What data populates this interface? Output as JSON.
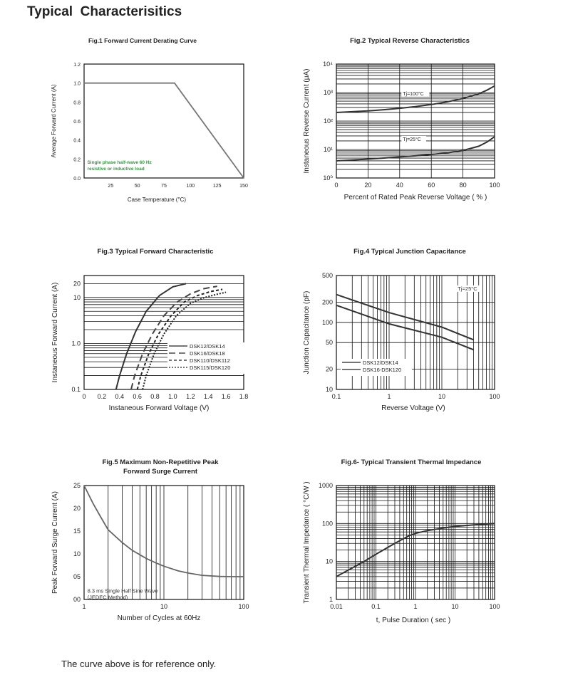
{
  "page": {
    "title": "Typical  Characterisitics",
    "footer": "The curve above is for reference only."
  },
  "chart_data": [
    {
      "id": "fig1",
      "type": "line",
      "title": "Fig.1  Forward Current Derating Curve",
      "xlabel": "Case Temperature (°C)",
      "ylabel": "Average Forward Current (A)",
      "x_scale": "linear",
      "y_scale": "linear",
      "xlim": [
        0,
        150
      ],
      "ylim": [
        0,
        1.2
      ],
      "x_ticks": [
        25,
        50,
        75,
        100,
        125,
        150
      ],
      "x_tick_labels": [
        "25",
        "50",
        "75",
        "100",
        "125",
        "150"
      ],
      "y_ticks": [
        0,
        0.2,
        0.4,
        0.6,
        0.8,
        1.0,
        1.2
      ],
      "y_tick_labels": [
        "0.0",
        "0.2",
        "0.4",
        "0.6",
        "0.8",
        "1.0",
        "1.2"
      ],
      "grid": {
        "x": [],
        "y": []
      },
      "annotation": {
        "lines": [
          "Single phase half-wave 60 Hz",
          "resistive or inductive load"
        ],
        "color": "#2e9a3a",
        "x": 3,
        "y": 0.15
      },
      "series": [
        {
          "x": [
            0,
            85,
            150
          ],
          "y": [
            1.0,
            1.0,
            0
          ],
          "color": "#777777",
          "width": 1.8
        }
      ]
    },
    {
      "id": "fig2",
      "type": "line",
      "title": "Fig.2  Typical Reverse Characteristics",
      "xlabel": "Percent of Rated Peak Reverse Voltage ( % )",
      "ylabel": "Instaneous Reverse Current (μA)",
      "x_scale": "linear",
      "y_scale": "log",
      "xlim": [
        0,
        100
      ],
      "ylim": [
        1,
        10000
      ],
      "x_ticks": [
        0,
        20,
        40,
        60,
        80,
        100
      ],
      "x_tick_labels": [
        "0",
        "20",
        "40",
        "60",
        "80",
        "100"
      ],
      "y_ticks": [
        1,
        10,
        100,
        1000,
        10000
      ],
      "y_tick_labels": [
        "10⁰",
        "10¹",
        "10²",
        "10³",
        "10⁴"
      ],
      "grid": {
        "x": [
          20,
          40,
          60,
          80
        ],
        "y": "log-minor"
      },
      "series": [
        {
          "name": "Tj=100°C",
          "label_x": 42,
          "label_y": 800,
          "x": [
            0,
            10,
            20,
            30,
            40,
            50,
            60,
            70,
            80,
            90,
            95,
            100
          ],
          "y": [
            200,
            212,
            228,
            250,
            280,
            320,
            380,
            470,
            620,
            900,
            1200,
            1700
          ],
          "color": "#333333",
          "width": 2
        },
        {
          "name": "Tj=25°C",
          "label_x": 42,
          "label_y": 20,
          "x": [
            0,
            10,
            20,
            30,
            40,
            50,
            60,
            70,
            80,
            90,
            95,
            100
          ],
          "y": [
            4,
            4.3,
            4.6,
            5.0,
            5.5,
            6.0,
            6.7,
            7.6,
            9.2,
            13,
            18,
            28
          ],
          "color": "#333333",
          "width": 2
        }
      ]
    },
    {
      "id": "fig3",
      "type": "line",
      "title": "Fig.3  Typical Forward Characteristic",
      "xlabel": "Instaneous Forward Voltage (V)",
      "ylabel": "Instaneous Forward Current (A)",
      "x_scale": "linear",
      "y_scale": "log",
      "xlim": [
        0,
        1.8
      ],
      "ylim": [
        0.1,
        30
      ],
      "x_ticks": [
        0,
        0.2,
        0.4,
        0.6,
        0.8,
        1.0,
        1.2,
        1.4,
        1.6,
        1.8
      ],
      "x_tick_labels": [
        "0",
        "0.2",
        "0.4",
        "0.6",
        "0.8",
        "1.0",
        "1.2",
        "1.4",
        "1.6",
        "1.8"
      ],
      "y_ticks": [
        0.1,
        1.0,
        10,
        20
      ],
      "y_tick_labels": [
        "0.1",
        "1.0",
        "10",
        "20"
      ],
      "grid": {
        "x": [],
        "y": "log-minor"
      },
      "legend": {
        "position": "bottom-right"
      },
      "series": [
        {
          "name": "DSK12/DSK14",
          "dash": "",
          "x": [
            0.36,
            0.4,
            0.48,
            0.58,
            0.7,
            0.85,
            1.0,
            1.15
          ],
          "y": [
            0.1,
            0.2,
            0.6,
            1.8,
            5,
            11,
            17,
            20
          ],
          "color": "#333333",
          "width": 2
        },
        {
          "name": "DSK16/DSK18",
          "dash": "9,5",
          "x": [
            0.53,
            0.57,
            0.66,
            0.77,
            0.9,
            1.05,
            1.2,
            1.35,
            1.5
          ],
          "y": [
            0.1,
            0.2,
            0.6,
            1.6,
            4,
            8,
            12,
            15.5,
            17.5
          ],
          "color": "#444444",
          "width": 2
        },
        {
          "name": "DSK110/DSK112",
          "dash": "4,3",
          "x": [
            0.6,
            0.64,
            0.73,
            0.84,
            0.98,
            1.13,
            1.28,
            1.43,
            1.56
          ],
          "y": [
            0.1,
            0.2,
            0.6,
            1.6,
            4,
            8,
            11,
            13.5,
            15
          ],
          "color": "#222222",
          "width": 2
        },
        {
          "name": "DSK115/DSK120",
          "dash": "2,2",
          "x": [
            0.66,
            0.7,
            0.79,
            0.9,
            1.04,
            1.2,
            1.36,
            1.52,
            1.6
          ],
          "y": [
            0.1,
            0.2,
            0.6,
            1.6,
            4,
            7.5,
            10,
            12,
            13
          ],
          "color": "#222222",
          "width": 2
        }
      ]
    },
    {
      "id": "fig4",
      "type": "line",
      "title": "Fig.4  Typical Junction Capacitance",
      "xlabel": "Reverse  Voltage (V)",
      "ylabel": "Junction Capacitance (pF)",
      "x_scale": "log",
      "y_scale": "log",
      "xlim": [
        0.1,
        100
      ],
      "ylim": [
        10,
        500
      ],
      "x_ticks": [
        0.1,
        1,
        10,
        100
      ],
      "x_tick_labels": [
        "0.1",
        "1",
        "10",
        "100"
      ],
      "y_ticks": [
        10,
        20,
        50,
        100,
        200,
        500
      ],
      "y_tick_labels": [
        "10",
        "20",
        "50",
        "100",
        "200",
        "500"
      ],
      "grid": {
        "x": "log-minor",
        "y": [
          20,
          50,
          100,
          200
        ]
      },
      "annotation": {
        "lines": [
          "Tj=25°C"
        ],
        "color": "#333333",
        "x": 20,
        "y": 300
      },
      "legend": {
        "position": "bottom-left"
      },
      "series": [
        {
          "name": "DSK12/DSK14",
          "x": [
            0.1,
            1,
            10,
            40
          ],
          "y": [
            260,
            140,
            85,
            55
          ],
          "color": "#333333",
          "width": 2
        },
        {
          "name": "DSK16-DSK120",
          "x": [
            0.1,
            1,
            10,
            40
          ],
          "y": [
            180,
            95,
            60,
            39
          ],
          "color": "#333333",
          "width": 2
        }
      ]
    },
    {
      "id": "fig5",
      "type": "line",
      "title": "Fig.5  Maximum Non-Repetitive Peak",
      "subtitle": "Forward Surge Current",
      "xlabel": "Number of Cycles at 60Hz",
      "ylabel": "Peak Forward Surge Current (A)",
      "x_scale": "log",
      "y_scale": "linear",
      "xlim": [
        1,
        100
      ],
      "ylim": [
        0,
        25
      ],
      "x_ticks": [
        1,
        10,
        100
      ],
      "x_tick_labels": [
        "1",
        "10",
        "100"
      ],
      "y_ticks": [
        0,
        5,
        10,
        15,
        20,
        25
      ],
      "y_tick_labels": [
        "00",
        "05",
        "10",
        "15",
        "20",
        "25"
      ],
      "grid": {
        "x": "log-minor",
        "y": []
      },
      "annotation": {
        "lines": [
          "8.3 ms Single Half Sine Wave",
          "(JEDEC Method)"
        ],
        "color": "#333333",
        "x": 1.1,
        "y": 1.5
      },
      "series": [
        {
          "x": [
            1,
            1.3,
            1.6,
            2,
            3,
            4,
            6,
            8,
            10,
            15,
            20,
            30,
            50,
            70,
            100
          ],
          "y": [
            25,
            21,
            18.2,
            15.3,
            12.5,
            10.8,
            9.0,
            8.0,
            7.3,
            6.3,
            5.8,
            5.3,
            5.05,
            5.0,
            5.0
          ],
          "color": "#666666",
          "width": 1.8
        }
      ]
    },
    {
      "id": "fig6",
      "type": "line",
      "title": "Fig.6- Typical Transient Thermal Impedance",
      "xlabel": "t, Pulse Duration ( sec )",
      "ylabel": "Transient Thermal Impedance ( °C/W )",
      "x_scale": "log",
      "y_scale": "log",
      "xlim": [
        0.01,
        100
      ],
      "ylim": [
        1,
        1000
      ],
      "x_ticks": [
        0.01,
        0.1,
        1,
        10,
        100
      ],
      "x_tick_labels": [
        "0.01",
        "0.1",
        "1",
        "10",
        "100"
      ],
      "y_ticks": [
        1,
        10,
        100,
        1000
      ],
      "y_tick_labels": [
        "1",
        "10",
        "100",
        "1000"
      ],
      "grid": {
        "x": "log-minor",
        "y": "log-minor"
      },
      "series": [
        {
          "x": [
            0.01,
            0.05,
            0.1,
            0.3,
            0.7,
            1,
            2,
            5,
            10,
            30,
            100
          ],
          "y": [
            4,
            10,
            15.5,
            30,
            48,
            55,
            65,
            76,
            84,
            92,
            100
          ],
          "color": "#333333",
          "width": 2
        }
      ]
    }
  ]
}
